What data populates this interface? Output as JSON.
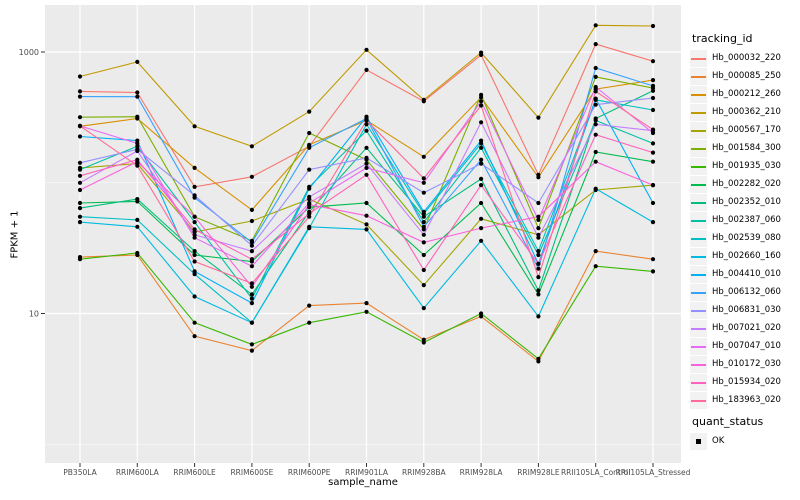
{
  "figure": {
    "panel_background": "#EBEBEB",
    "grid_color": "#FFFFFF",
    "axis_text_color": "#4D4D4D",
    "tick_color": "#333333",
    "legend_key_background": "#F2F2F2",
    "point_color": "#000000"
  },
  "chart_data": {
    "type": "line",
    "xlabel": "sample_name",
    "ylabel": "FPKM + 1",
    "y_scale": "log10",
    "grid": true,
    "legend_position": "right",
    "y_ticks": [
      10,
      1000
    ],
    "y_tick_labels": [
      "10",
      "1000"
    ],
    "y_minor_gridlines": [
      1,
      100
    ],
    "ylim_log": [
      0.72,
      2290
    ],
    "categories": [
      "PB350LA",
      "RRIM600LA",
      "RRIM600LE",
      "RRIM600SE",
      "RRIM600PE",
      "RRIM901LA",
      "RRIM928BA",
      "RRIM928LA",
      "RRIM928LE",
      "RRII105LA_Control",
      "RRII105LA_Stressed"
    ],
    "marker": "black-point",
    "series": [
      {
        "name": "Hb_000032_220",
        "color": "#F8766D",
        "values": [
          500,
          490,
          93,
          111,
          190,
          730,
          420,
          950,
          115,
          1150,
          850
        ]
      },
      {
        "name": "Hb_000085_250",
        "color": "#EA8331",
        "values": [
          27,
          28,
          6.7,
          5.2,
          11.5,
          12,
          6.3,
          9.5,
          4.3,
          30,
          26
        ]
      },
      {
        "name": "Hb_000212_260",
        "color": "#D89000",
        "values": [
          270,
          310,
          130,
          62,
          195,
          300,
          158,
          450,
          110,
          520,
          610
        ]
      },
      {
        "name": "Hb_000362_210",
        "color": "#C09B00",
        "values": [
          650,
          840,
          270,
          190,
          350,
          1040,
          430,
          990,
          315,
          1600,
          1580
        ]
      },
      {
        "name": "Hb_000567_170",
        "color": "#A3A500",
        "values": [
          130,
          140,
          42,
          51,
          75,
          48,
          16.5,
          53,
          40,
          88,
          96
        ]
      },
      {
        "name": "Hb_001584_300",
        "color": "#7CAE00",
        "values": [
          317,
          320,
          55,
          36,
          240,
          150,
          44,
          470,
          45,
          645,
          530
        ]
      },
      {
        "name": "Hb_001935_030",
        "color": "#39B600",
        "values": [
          26,
          29,
          8.5,
          5.8,
          8.5,
          10.3,
          6,
          10,
          4.5,
          23,
          21
        ]
      },
      {
        "name": "Hb_002282_020",
        "color": "#00BB4E",
        "values": [
          70,
          72,
          28,
          25,
          65,
          70,
          28,
          70,
          14,
          172,
          145
        ]
      },
      {
        "name": "Hb_002352_010",
        "color": "#00BF7D",
        "values": [
          64,
          75,
          30,
          14,
          60,
          185,
          55,
          107,
          15,
          310,
          505
        ]
      },
      {
        "name": "Hb_002387_060",
        "color": "#00C1A3",
        "values": [
          126,
          190,
          50,
          13,
          93,
          250,
          50,
          185,
          28,
          300,
          200
        ]
      },
      {
        "name": "Hb_002539_080",
        "color": "#00BFC4",
        "values": [
          55,
          52,
          20,
          8.5,
          45,
          280,
          58,
          200,
          30,
          430,
          360
        ]
      },
      {
        "name": "Hb_002660_160",
        "color": "#00BAE0",
        "values": [
          50,
          46,
          13.5,
          8.5,
          46,
          44,
          11,
          36,
          9.5,
          90,
          50
        ]
      },
      {
        "name": "Hb_004410_010",
        "color": "#00B0F6",
        "values": [
          226,
          210,
          21,
          12,
          90,
          320,
          60,
          210,
          24,
          440,
          70
        ]
      },
      {
        "name": "Hb_006132_060",
        "color": "#35A2FF",
        "values": [
          456,
          455,
          77,
          35,
          185,
          310,
          46,
          150,
          22,
          755,
          550
        ]
      },
      {
        "name": "Hb_006831_030",
        "color": "#9590FF",
        "values": [
          142,
          180,
          80,
          33,
          126,
          155,
          84,
          140,
          70,
          395,
          445
        ]
      },
      {
        "name": "Hb_007021_020",
        "color": "#C77CFF",
        "values": [
          100,
          175,
          40,
          30,
          78,
          140,
          40,
          290,
          38,
          280,
          250
        ]
      },
      {
        "name": "Hb_007047_010",
        "color": "#E76BF3",
        "values": [
          272,
          200,
          38,
          23,
          70,
          130,
          100,
          420,
          52,
          540,
          240
        ]
      },
      {
        "name": "Hb_010172_030",
        "color": "#FA62DB",
        "values": [
          88,
          145,
          55,
          16,
          68,
          56,
          35,
          45,
          55,
          145,
          96
        ]
      },
      {
        "name": "Hb_015934_020",
        "color": "#FF62BC",
        "values": [
          113,
          150,
          44,
          26,
          58,
          115,
          21.5,
          96,
          24,
          233,
          170
        ]
      },
      {
        "name": "Hb_183963_020",
        "color": "#FF6A98",
        "values": [
          272,
          135,
          25,
          17,
          55,
          300,
          108,
          390,
          19,
          500,
          255
        ]
      }
    ],
    "legend": {
      "line_legend_title": "tracking_id",
      "point_legend_title": "quant_status",
      "point_legend_items": [
        {
          "label": "OK"
        }
      ]
    }
  }
}
